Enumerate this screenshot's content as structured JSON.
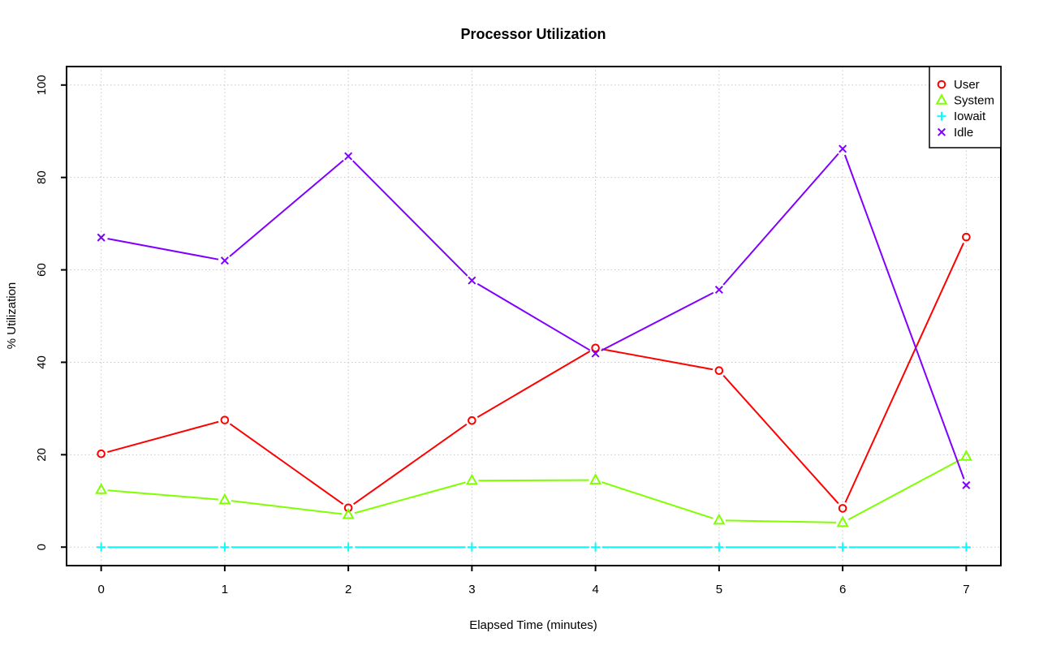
{
  "title": "Processor Utilization",
  "x_axis": {
    "label": "Elapsed Time (minutes)",
    "ticks": [
      "0",
      "1",
      "2",
      "3",
      "4",
      "5",
      "6",
      "7"
    ]
  },
  "y_axis": {
    "label": "% Utilization",
    "ticks": [
      "0",
      "20",
      "40",
      "60",
      "80",
      "100"
    ]
  },
  "legend": {
    "entries": [
      "User",
      "System",
      "Iowait",
      "Idle"
    ]
  },
  "colors": {
    "user": "#FF0000",
    "system": "#80FF00",
    "iowait": "#00FFFF",
    "idle": "#8000FF",
    "grid": "#C8C8C8"
  },
  "chart_data": {
    "type": "line",
    "title": "Processor Utilization",
    "xlabel": "Elapsed Time (minutes)",
    "ylabel": "% Utilization",
    "x": [
      0,
      1,
      2,
      3,
      4,
      5,
      6,
      7
    ],
    "xlim": [
      0,
      7
    ],
    "ylim": [
      0,
      100
    ],
    "grid": true,
    "legend_position": "top-right",
    "series": [
      {
        "name": "User",
        "color": "#FF0000",
        "marker": "circle",
        "values": [
          20.2,
          27.5,
          8.5,
          27.4,
          43.1,
          38.2,
          8.4,
          67.1
        ]
      },
      {
        "name": "System",
        "color": "#80FF00",
        "marker": "triangle",
        "values": [
          12.4,
          10.2,
          7.0,
          14.4,
          14.5,
          5.8,
          5.3,
          19.6
        ]
      },
      {
        "name": "Iowait",
        "color": "#00FFFF",
        "marker": "plus",
        "values": [
          0,
          0,
          0,
          0,
          0,
          0,
          0,
          0
        ]
      },
      {
        "name": "Idle",
        "color": "#8000FF",
        "marker": "x",
        "values": [
          67.0,
          62.0,
          84.6,
          57.7,
          41.9,
          55.7,
          86.2,
          13.4
        ]
      }
    ]
  }
}
